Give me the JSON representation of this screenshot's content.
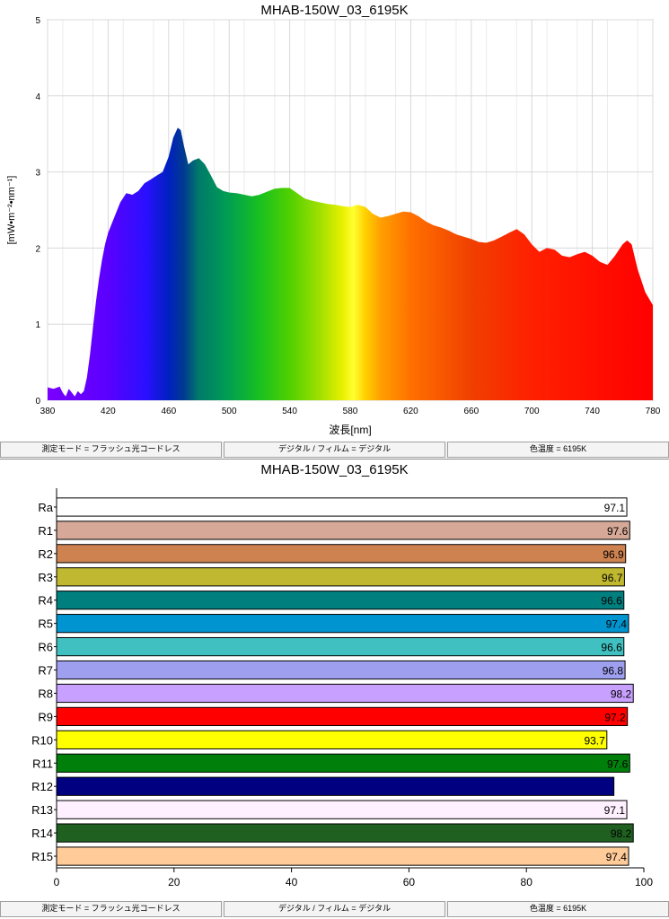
{
  "status_bar": {
    "mode": "測定モード = フラッシュ光コードレス",
    "digital": "デジタル / フィルム = デジタル",
    "color_temp": "色温度 = 6195K"
  },
  "chart_data": [
    {
      "type": "area",
      "title": "MHAB-150W_03_6195K",
      "xlabel": "波長[nm]",
      "ylabel": "[mW•m⁻²•nm⁻¹]",
      "xlim": [
        380,
        780
      ],
      "ylim": [
        0,
        5
      ],
      "xticks": [
        380,
        420,
        460,
        500,
        540,
        580,
        620,
        660,
        700,
        740,
        780
      ],
      "yticks": [
        0,
        1,
        2,
        3,
        4,
        5
      ],
      "grid": true,
      "x": [
        380,
        384,
        388,
        390,
        392,
        394,
        396,
        398,
        400,
        402,
        404,
        406,
        408,
        410,
        412,
        414,
        416,
        418,
        420,
        424,
        428,
        432,
        436,
        440,
        444,
        448,
        452,
        456,
        460,
        463,
        466,
        468,
        470,
        473,
        476,
        480,
        484,
        488,
        492,
        496,
        500,
        505,
        510,
        515,
        520,
        525,
        530,
        535,
        540,
        545,
        550,
        555,
        560,
        565,
        570,
        575,
        580,
        585,
        590,
        595,
        600,
        605,
        610,
        615,
        620,
        625,
        630,
        635,
        640,
        645,
        650,
        655,
        660,
        665,
        670,
        675,
        680,
        685,
        690,
        695,
        700,
        705,
        710,
        715,
        720,
        725,
        730,
        735,
        740,
        745,
        750,
        755,
        760,
        763,
        766,
        770,
        775,
        780
      ],
      "y": [
        0.17,
        0.15,
        0.18,
        0.1,
        0.05,
        0.15,
        0.1,
        0.05,
        0.12,
        0.08,
        0.12,
        0.3,
        0.6,
        0.95,
        1.3,
        1.6,
        1.85,
        2.05,
        2.2,
        2.4,
        2.6,
        2.72,
        2.7,
        2.75,
        2.85,
        2.9,
        2.95,
        3.0,
        3.2,
        3.45,
        3.58,
        3.55,
        3.35,
        3.1,
        3.15,
        3.18,
        3.1,
        2.95,
        2.8,
        2.75,
        2.73,
        2.72,
        2.7,
        2.68,
        2.7,
        2.74,
        2.78,
        2.79,
        2.79,
        2.72,
        2.65,
        2.62,
        2.6,
        2.58,
        2.57,
        2.55,
        2.54,
        2.57,
        2.54,
        2.45,
        2.4,
        2.42,
        2.45,
        2.48,
        2.47,
        2.42,
        2.35,
        2.3,
        2.27,
        2.23,
        2.18,
        2.15,
        2.12,
        2.08,
        2.07,
        2.1,
        2.15,
        2.2,
        2.25,
        2.18,
        2.05,
        1.95,
        2.0,
        1.98,
        1.9,
        1.88,
        1.92,
        1.95,
        1.9,
        1.82,
        1.78,
        1.9,
        2.05,
        2.1,
        2.05,
        1.72,
        1.42,
        1.25
      ]
    },
    {
      "type": "bar",
      "orientation": "horizontal",
      "title": "MHAB-150W_03_6195K",
      "xlim": [
        0,
        100
      ],
      "xticks": [
        0,
        20,
        40,
        60,
        80,
        100
      ],
      "categories": [
        "Ra",
        "R1",
        "R2",
        "R3",
        "R4",
        "R5",
        "R6",
        "R7",
        "R8",
        "R9",
        "R10",
        "R11",
        "R12",
        "R13",
        "R14",
        "R15"
      ],
      "values": [
        97.1,
        97.6,
        96.9,
        96.7,
        96.6,
        97.4,
        96.6,
        96.8,
        98.2,
        97.2,
        93.7,
        97.6,
        94.9,
        97.1,
        98.2,
        97.4
      ],
      "value_labels": [
        "97.1",
        "97.6",
        "96.9",
        "96.7",
        "96.6",
        "97.4",
        "96.6",
        "96.8",
        "98.2",
        "97.2",
        "93.7",
        "97.6",
        "",
        "97.1",
        "98.2",
        "97.4"
      ],
      "colors": [
        "#ffffff",
        "#d6a898",
        "#cd8250",
        "#bfb830",
        "#007f7f",
        "#0095d0",
        "#40c0c0",
        "#9f9ff0",
        "#c8a0ff",
        "#ff0000",
        "#ffff00",
        "#00800a",
        "#000080",
        "#fff0ff",
        "#1f6020",
        "#ffcc99"
      ]
    }
  ]
}
